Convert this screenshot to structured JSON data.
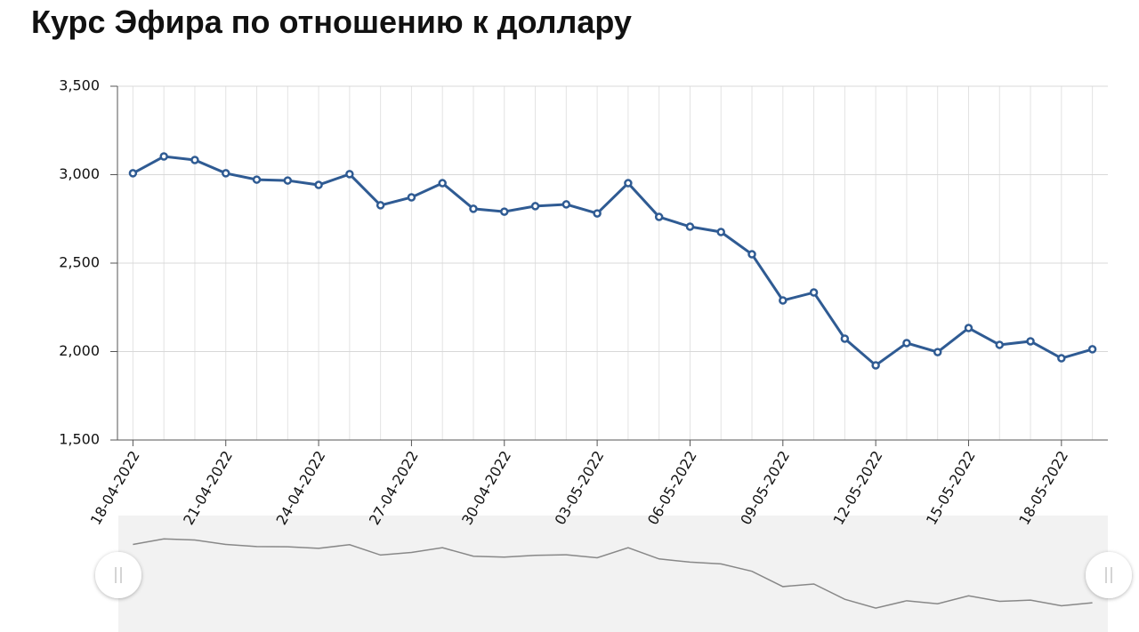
{
  "chart_data": {
    "type": "line",
    "title": "Курс Эфира по отношению к доллару",
    "categories": [
      "18-04-2022",
      null,
      null,
      "21-04-2022",
      null,
      null,
      "24-04-2022",
      null,
      null,
      "27-04-2022",
      null,
      null,
      "30-04-2022",
      null,
      null,
      "03-05-2022",
      null,
      null,
      "06-05-2022",
      null,
      null,
      "09-05-2022",
      null,
      null,
      "12-05-2022",
      null,
      null,
      "15-05-2022",
      null,
      null,
      "18-05-2022",
      null
    ],
    "series": [
      {
        "color": "#2f5b93",
        "values": [
          3008,
          3103,
          3083,
          3008,
          2972,
          2967,
          2942,
          3003,
          2827,
          2872,
          2952,
          2807,
          2791,
          2822,
          2832,
          2781,
          2952,
          2761,
          2706,
          2676,
          2550,
          2289,
          2334,
          2073,
          1922,
          2048,
          1997,
          2133,
          2038,
          2058,
          1962,
          2013
        ]
      }
    ],
    "ylim": [
      1500,
      3500
    ],
    "yticks": [
      {
        "value": 1500,
        "label": "1,500"
      },
      {
        "value": 2000,
        "label": "2,000"
      },
      {
        "value": 2500,
        "label": "2,500"
      },
      {
        "value": 3000,
        "label": "3,000"
      },
      {
        "value": 3500,
        "label": "3,500"
      }
    ],
    "grid": true
  }
}
